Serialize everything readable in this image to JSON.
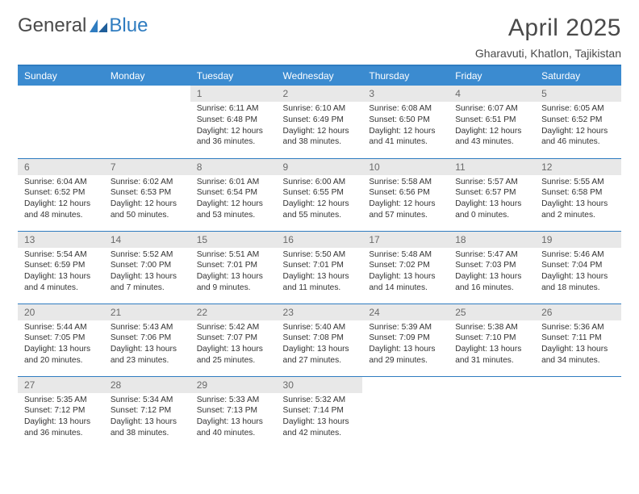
{
  "brand": {
    "part1": "General",
    "part2": "Blue"
  },
  "title": "April 2025",
  "location": "Gharavuti, Khatlon, Tajikistan",
  "colors": {
    "header_bg": "#3b8bd0",
    "rule": "#2f7cc0",
    "daynum_bg": "#e8e8e8",
    "text": "#333333",
    "brand_gray": "#4a4a4a",
    "brand_blue": "#2f7cc0",
    "page_bg": "#ffffff"
  },
  "typography": {
    "title_pt": 30,
    "location_pt": 14,
    "header_pt": 12,
    "body_pt": 10.2
  },
  "days": [
    "Sunday",
    "Monday",
    "Tuesday",
    "Wednesday",
    "Thursday",
    "Friday",
    "Saturday"
  ],
  "labels": {
    "sunrise": "Sunrise:",
    "sunset": "Sunset:",
    "daylight": "Daylight:"
  },
  "weeks": [
    [
      null,
      null,
      {
        "n": "1",
        "sr": "6:11 AM",
        "ss": "6:48 PM",
        "dl": "12 hours and 36 minutes."
      },
      {
        "n": "2",
        "sr": "6:10 AM",
        "ss": "6:49 PM",
        "dl": "12 hours and 38 minutes."
      },
      {
        "n": "3",
        "sr": "6:08 AM",
        "ss": "6:50 PM",
        "dl": "12 hours and 41 minutes."
      },
      {
        "n": "4",
        "sr": "6:07 AM",
        "ss": "6:51 PM",
        "dl": "12 hours and 43 minutes."
      },
      {
        "n": "5",
        "sr": "6:05 AM",
        "ss": "6:52 PM",
        "dl": "12 hours and 46 minutes."
      }
    ],
    [
      {
        "n": "6",
        "sr": "6:04 AM",
        "ss": "6:52 PM",
        "dl": "12 hours and 48 minutes."
      },
      {
        "n": "7",
        "sr": "6:02 AM",
        "ss": "6:53 PM",
        "dl": "12 hours and 50 minutes."
      },
      {
        "n": "8",
        "sr": "6:01 AM",
        "ss": "6:54 PM",
        "dl": "12 hours and 53 minutes."
      },
      {
        "n": "9",
        "sr": "6:00 AM",
        "ss": "6:55 PM",
        "dl": "12 hours and 55 minutes."
      },
      {
        "n": "10",
        "sr": "5:58 AM",
        "ss": "6:56 PM",
        "dl": "12 hours and 57 minutes."
      },
      {
        "n": "11",
        "sr": "5:57 AM",
        "ss": "6:57 PM",
        "dl": "13 hours and 0 minutes."
      },
      {
        "n": "12",
        "sr": "5:55 AM",
        "ss": "6:58 PM",
        "dl": "13 hours and 2 minutes."
      }
    ],
    [
      {
        "n": "13",
        "sr": "5:54 AM",
        "ss": "6:59 PM",
        "dl": "13 hours and 4 minutes."
      },
      {
        "n": "14",
        "sr": "5:52 AM",
        "ss": "7:00 PM",
        "dl": "13 hours and 7 minutes."
      },
      {
        "n": "15",
        "sr": "5:51 AM",
        "ss": "7:01 PM",
        "dl": "13 hours and 9 minutes."
      },
      {
        "n": "16",
        "sr": "5:50 AM",
        "ss": "7:01 PM",
        "dl": "13 hours and 11 minutes."
      },
      {
        "n": "17",
        "sr": "5:48 AM",
        "ss": "7:02 PM",
        "dl": "13 hours and 14 minutes."
      },
      {
        "n": "18",
        "sr": "5:47 AM",
        "ss": "7:03 PM",
        "dl": "13 hours and 16 minutes."
      },
      {
        "n": "19",
        "sr": "5:46 AM",
        "ss": "7:04 PM",
        "dl": "13 hours and 18 minutes."
      }
    ],
    [
      {
        "n": "20",
        "sr": "5:44 AM",
        "ss": "7:05 PM",
        "dl": "13 hours and 20 minutes."
      },
      {
        "n": "21",
        "sr": "5:43 AM",
        "ss": "7:06 PM",
        "dl": "13 hours and 23 minutes."
      },
      {
        "n": "22",
        "sr": "5:42 AM",
        "ss": "7:07 PM",
        "dl": "13 hours and 25 minutes."
      },
      {
        "n": "23",
        "sr": "5:40 AM",
        "ss": "7:08 PM",
        "dl": "13 hours and 27 minutes."
      },
      {
        "n": "24",
        "sr": "5:39 AM",
        "ss": "7:09 PM",
        "dl": "13 hours and 29 minutes."
      },
      {
        "n": "25",
        "sr": "5:38 AM",
        "ss": "7:10 PM",
        "dl": "13 hours and 31 minutes."
      },
      {
        "n": "26",
        "sr": "5:36 AM",
        "ss": "7:11 PM",
        "dl": "13 hours and 34 minutes."
      }
    ],
    [
      {
        "n": "27",
        "sr": "5:35 AM",
        "ss": "7:12 PM",
        "dl": "13 hours and 36 minutes."
      },
      {
        "n": "28",
        "sr": "5:34 AM",
        "ss": "7:12 PM",
        "dl": "13 hours and 38 minutes."
      },
      {
        "n": "29",
        "sr": "5:33 AM",
        "ss": "7:13 PM",
        "dl": "13 hours and 40 minutes."
      },
      {
        "n": "30",
        "sr": "5:32 AM",
        "ss": "7:14 PM",
        "dl": "13 hours and 42 minutes."
      },
      null,
      null,
      null
    ]
  ]
}
